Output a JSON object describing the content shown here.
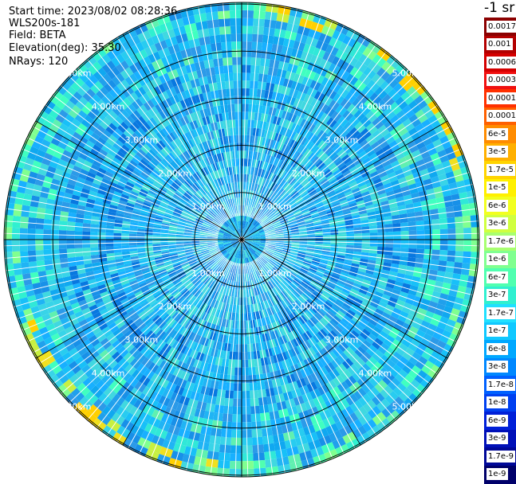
{
  "info": {
    "start_time": "Start time: 2023/08/02 08:28:36",
    "instrument": "WLS200s-181",
    "field": "Field: BETA",
    "elevation": "Elevation(deg): 35.30",
    "nrays": "NRays: 120"
  },
  "unit_label": "-1 sr",
  "range_labels": [
    "1.00km",
    "2.00km",
    "3.00km",
    "4.00km",
    "5.00km"
  ],
  "colorbar": {
    "labels": [
      "0.0017",
      "0.001",
      "0.0006",
      "0.0003",
      "0.00017",
      "0.0001",
      "6e-5",
      "3e-5",
      "1.7e-5",
      "1e-5",
      "6e-6",
      "3e-6",
      "1.7e-6",
      "1e-6",
      "6e-7",
      "3e-7",
      "1.7e-7",
      "1e-7",
      "6e-8",
      "3e-8",
      "1.7e-8",
      "1e-8",
      "6e-9",
      "3e-9",
      "1.7e-9",
      "1e-9"
    ],
    "colors": [
      "#8b0000",
      "#b30000",
      "#d40000",
      "#f01010",
      "#ff3000",
      "#ff6000",
      "#ff8c00",
      "#ffb000",
      "#ffd400",
      "#fff000",
      "#f2ff20",
      "#d0ff40",
      "#a8ff70",
      "#80ff90",
      "#50ffb0",
      "#30f0d0",
      "#20e0ff",
      "#10c8ff",
      "#00a8ff",
      "#0088ff",
      "#0060ff",
      "#0040f0",
      "#0020d8",
      "#0010b8",
      "#000898",
      "#00006a"
    ]
  }
}
